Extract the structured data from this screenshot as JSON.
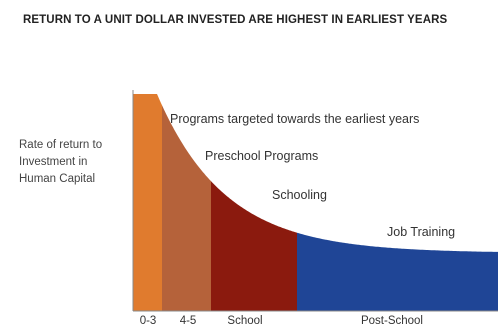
{
  "chart_data": {
    "type": "area",
    "title": "RETURN TO A UNIT DOLLAR INVESTED ARE HIGHEST IN EARLIEST YEARS",
    "ylabel": "Rate of return to Investment in Human Capital",
    "xlabel": "",
    "categories": [
      "0-3",
      "4-5",
      "School",
      "Post-School"
    ],
    "segment_colors": [
      "#e07b2e",
      "#b5623a",
      "#8b1a0e",
      "#1f4596"
    ],
    "annotations": [
      "Programs targeted towards the earliest years",
      "Preschool Programs",
      "Schooling",
      "Job Training"
    ],
    "curve": "decreasing convex",
    "grid": false
  }
}
